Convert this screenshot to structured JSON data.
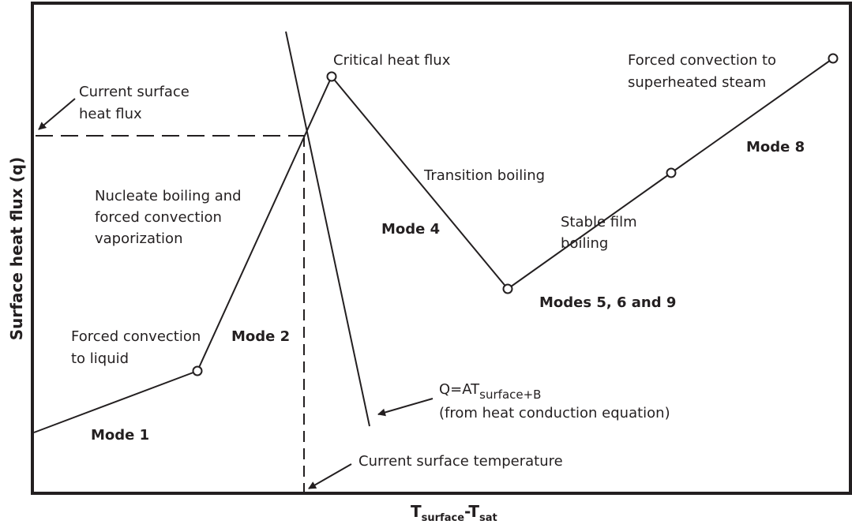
{
  "axes": {
    "y_label": "Surface heat flux (q)",
    "x_label": {
      "main": "T",
      "main_sub": "surface",
      "minus": "-T",
      "minus_sub": "sat"
    }
  },
  "labels": {
    "current_heat_flux": [
      "Current surface",
      "heat flux"
    ],
    "critical_heat_flux": "Critical heat flux",
    "superheated_steam": [
      "Forced convection to",
      "superheated steam"
    ],
    "mode8": "Mode 8",
    "transition": "Transition boiling",
    "nucleate": [
      "Nucleate boiling and",
      "forced convection",
      "vaporization"
    ],
    "mode4": "Mode 4",
    "stable_film": [
      "Stable film",
      "boiling"
    ],
    "modes569": "Modes 5, 6 and 9",
    "forced_liquid": [
      "Forced convection",
      "to liquid"
    ],
    "mode2": "Mode 2",
    "equation": {
      "main": "Q=AT",
      "sub": "surface+B",
      "note": "(from heat conduction equation)"
    },
    "mode1": "Mode 1",
    "current_temp": "Current surface temperature"
  }
}
